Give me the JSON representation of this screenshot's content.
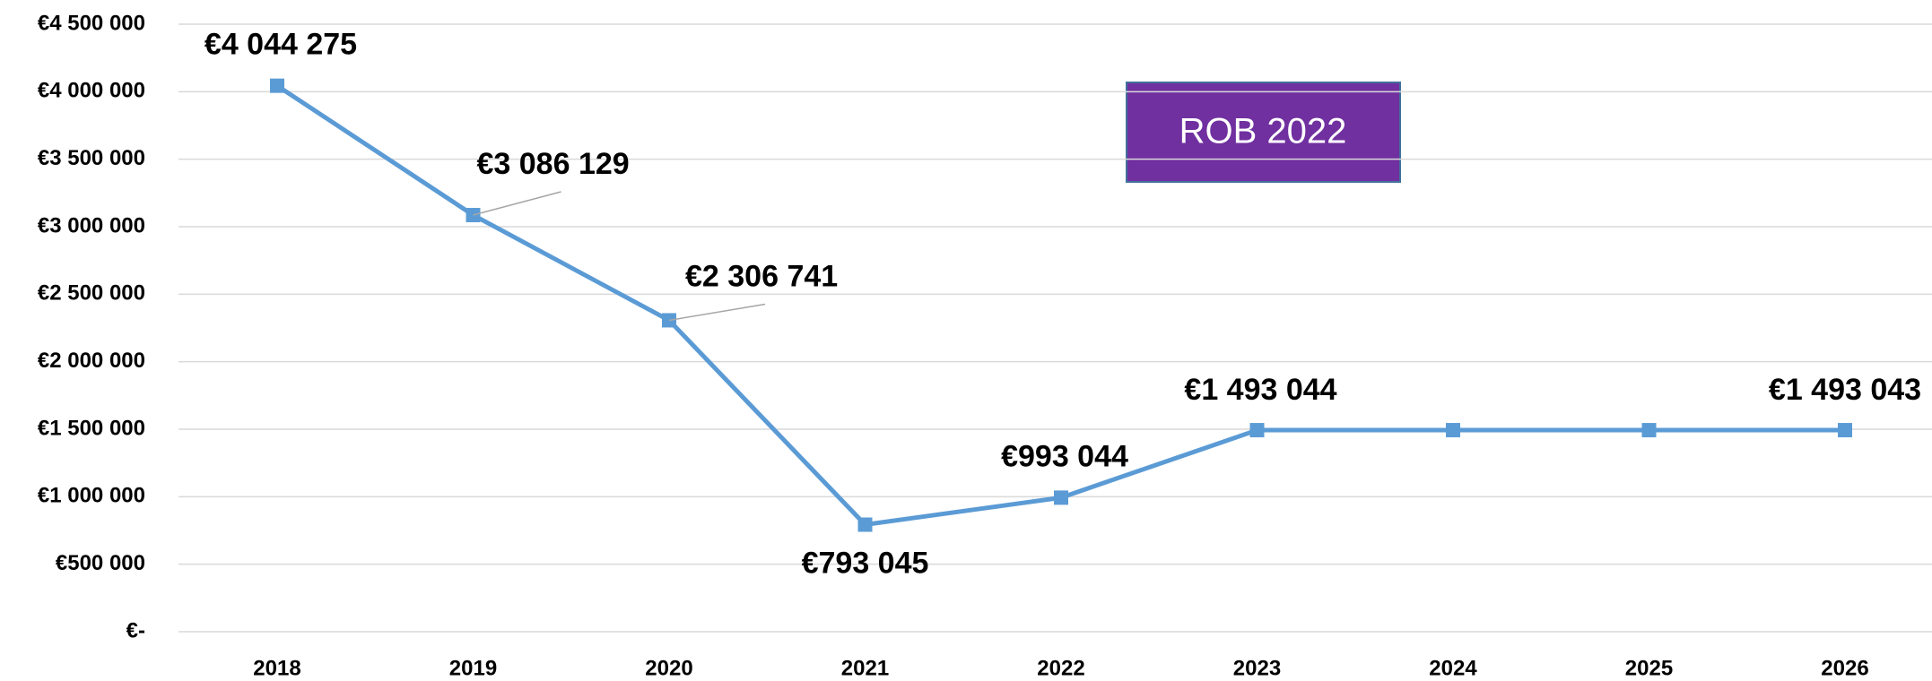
{
  "chart_data": {
    "type": "line",
    "categories": [
      "2018",
      "2019",
      "2020",
      "2021",
      "2022",
      "2023",
      "2024",
      "2025",
      "2026"
    ],
    "series": [
      {
        "color": "#5b9bd5",
        "values": [
          4044275,
          3086129,
          2306741,
          793045,
          993044,
          1493044,
          1493044,
          1493044,
          1493043
        ],
        "value_labels": [
          "€4 044 275",
          "€3 086 129",
          "€2 306 741",
          "€793 045",
          "€993 044",
          "€1 493 044",
          null,
          null,
          "€1 493 043"
        ]
      }
    ],
    "ylim": [
      0,
      4500000
    ],
    "yticks": [
      {
        "value": 0,
        "label": "€-"
      },
      {
        "value": 500000,
        "label": "€500 000"
      },
      {
        "value": 1000000,
        "label": "€1 000 000"
      },
      {
        "value": 1500000,
        "label": "€1 500 000"
      },
      {
        "value": 2000000,
        "label": "€2 000 000"
      },
      {
        "value": 2500000,
        "label": "€2 500 000"
      },
      {
        "value": 3000000,
        "label": "€3 000 000"
      },
      {
        "value": 3500000,
        "label": "€3 500 000"
      },
      {
        "value": 4000000,
        "label": "€4 000 000"
      },
      {
        "value": 4500000,
        "label": "€4 500 000"
      }
    ],
    "grid": true,
    "annotation": "ROB 2022"
  }
}
